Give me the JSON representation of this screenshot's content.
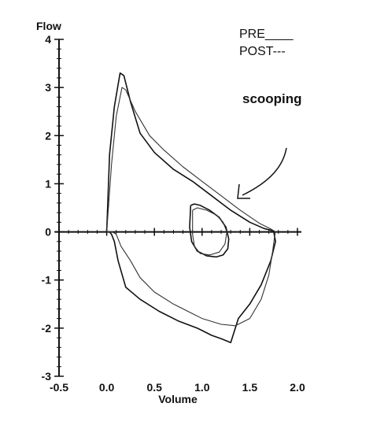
{
  "chart_data": {
    "type": "line",
    "title": "",
    "xlabel": "Volume",
    "ylabel": "Flow",
    "xlim": [
      -0.5,
      2.0
    ],
    "ylim": [
      -3,
      4
    ],
    "x_ticks": [
      -0.5,
      0.0,
      0.5,
      1.0,
      1.5,
      2.0
    ],
    "x_tick_labels": [
      "-0.5",
      "0.0",
      "0.5",
      "1.0",
      "1.5",
      "2.0"
    ],
    "y_ticks": [
      -3,
      -2,
      -1,
      0,
      1,
      2,
      3,
      4
    ],
    "y_tick_labels": [
      "-3",
      "-2",
      "-1",
      "0",
      "1",
      "2",
      "3",
      "4"
    ],
    "grid": false,
    "legend": {
      "placement": "top-right",
      "entries": [
        "PRE____",
        "POST---"
      ]
    },
    "annotations": [
      {
        "text": "scooping"
      }
    ],
    "series": [
      {
        "style": "solid",
        "x": [
          0.0,
          0.03,
          0.08,
          0.14,
          0.18,
          0.25,
          0.35,
          0.5,
          0.7,
          0.9,
          1.1,
          1.3,
          1.5,
          1.65,
          1.75,
          1.77,
          1.72,
          1.62,
          1.5,
          1.38,
          1.3,
          1.2,
          1.1,
          1.0,
          0.95,
          0.75,
          0.55,
          0.35,
          0.2,
          0.12,
          0.08,
          0.05,
          0.03,
          0.0
        ],
        "y": [
          0.0,
          1.6,
          2.6,
          3.3,
          3.25,
          2.7,
          2.05,
          1.65,
          1.3,
          1.05,
          0.75,
          0.45,
          0.2,
          0.07,
          0.02,
          -0.2,
          -0.6,
          -1.1,
          -1.5,
          -1.8,
          -2.3,
          -2.22,
          -2.15,
          -2.05,
          -2.0,
          -1.85,
          -1.65,
          -1.4,
          -1.15,
          -0.6,
          -0.2,
          -0.05,
          0.0,
          0.0
        ]
      },
      {
        "style": "thin",
        "x": [
          0.0,
          0.05,
          0.1,
          0.16,
          0.2,
          0.3,
          0.45,
          0.6,
          0.8,
          1.0,
          1.2,
          1.4,
          1.6,
          1.72,
          1.77,
          1.76,
          1.74,
          1.7,
          1.62,
          1.5,
          1.35,
          1.2,
          1.0,
          0.9,
          0.7,
          0.5,
          0.35,
          0.25,
          0.15,
          0.1,
          0.06,
          0.0
        ],
        "y": [
          0.0,
          1.4,
          2.4,
          3.0,
          2.95,
          2.5,
          2.0,
          1.7,
          1.35,
          1.05,
          0.75,
          0.45,
          0.18,
          0.06,
          0.0,
          -0.1,
          -0.4,
          -0.9,
          -1.4,
          -1.8,
          -1.95,
          -1.92,
          -1.8,
          -1.7,
          -1.5,
          -1.25,
          -0.95,
          -0.6,
          -0.3,
          -0.05,
          0.0,
          0.0
        ]
      },
      {
        "style": "solid",
        "x": [
          0.88,
          0.92,
          0.98,
          1.08,
          1.18,
          1.25,
          1.28,
          1.27,
          1.22,
          1.15,
          1.05,
          0.95,
          0.89,
          0.87,
          0.88
        ],
        "y": [
          0.55,
          0.58,
          0.55,
          0.45,
          0.3,
          0.1,
          -0.15,
          -0.35,
          -0.48,
          -0.52,
          -0.5,
          -0.4,
          -0.2,
          0.1,
          0.55
        ]
      },
      {
        "style": "thin",
        "x": [
          0.9,
          0.95,
          1.05,
          1.15,
          1.22,
          1.26,
          1.24,
          1.18,
          1.08,
          0.98,
          0.92,
          0.9,
          0.9
        ],
        "y": [
          0.45,
          0.5,
          0.45,
          0.35,
          0.2,
          0.0,
          -0.25,
          -0.42,
          -0.48,
          -0.45,
          -0.3,
          -0.05,
          0.45
        ]
      }
    ]
  }
}
